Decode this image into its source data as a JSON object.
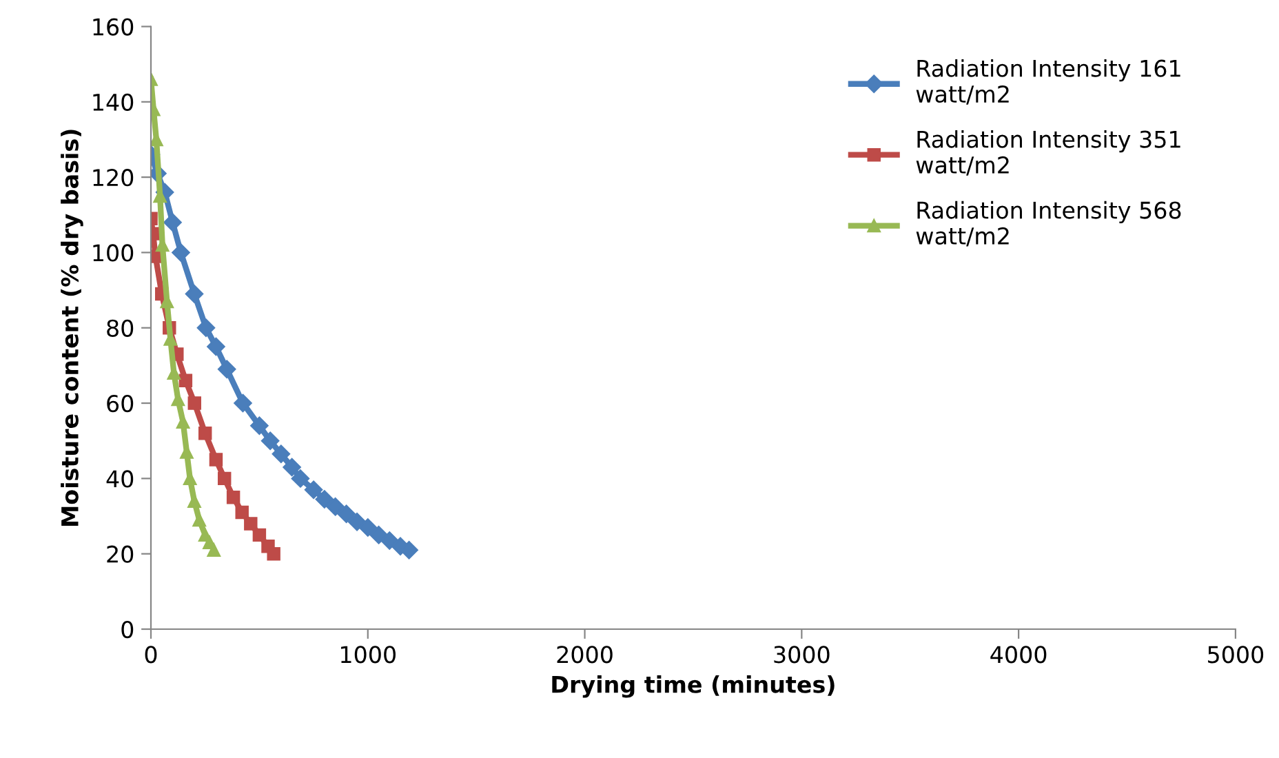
{
  "chart_data": {
    "type": "line",
    "xlabel": "Drying time (minutes)",
    "ylabel": "Moisture content (% dry basis)",
    "xlim": [
      0,
      5000
    ],
    "xticks": [
      0,
      1000,
      2000,
      3000,
      4000,
      5000
    ],
    "ylim": [
      0,
      160
    ],
    "yticks": [
      0,
      20,
      40,
      60,
      80,
      100,
      120,
      140,
      160
    ],
    "grid": false,
    "legend": "top right",
    "line_style": "solid",
    "series": [
      {
        "name": "Radiation Intensity 161\nwatt/m2",
        "color": "#4a7ebb",
        "marker": "diamond",
        "x": [
          0,
          30,
          64,
          100,
          138,
          200,
          254,
          300,
          350,
          424,
          500,
          550,
          600,
          650,
          689,
          750,
          800,
          850,
          901,
          950,
          1000,
          1050,
          1100,
          1150,
          1190
        ],
        "values": [
          126,
          121,
          116,
          108,
          100,
          89,
          80,
          75,
          69,
          60,
          54,
          50,
          46.5,
          43,
          40,
          37,
          34.5,
          32.5,
          30.6,
          28.5,
          27,
          25,
          23.5,
          22,
          21
        ]
      },
      {
        "name": "Radiation Intensity 351\nwatt/m2",
        "color": "#be4b48",
        "marker": "square",
        "x": [
          0,
          10,
          21,
          50,
          85,
          120,
          160,
          201,
          250,
          300,
          339,
          380,
          420,
          460,
          500,
          540,
          566
        ],
        "values": [
          109,
          105,
          99,
          89,
          80,
          73,
          66,
          60,
          52,
          45,
          40,
          35,
          31,
          28,
          25,
          22,
          20
        ]
      },
      {
        "name": "Radiation Intensity 568\nwatt/m2",
        "color": "#98b954",
        "marker": "triangle",
        "x": [
          0,
          12,
          25,
          42,
          53,
          74,
          90,
          106,
          125,
          148,
          165,
          180,
          200,
          223,
          250,
          270,
          290
        ],
        "values": [
          146,
          138,
          130,
          115,
          102,
          87,
          77,
          68,
          61,
          55,
          47,
          40,
          34,
          29,
          25,
          23,
          21
        ]
      }
    ]
  }
}
